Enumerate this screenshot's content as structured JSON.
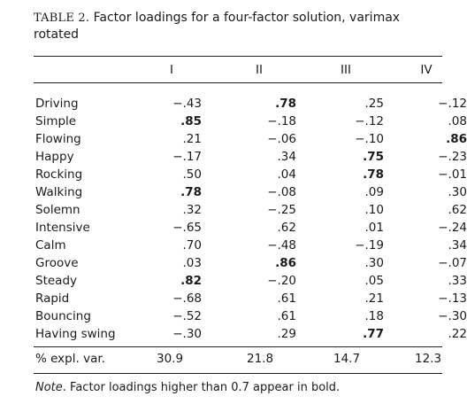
{
  "caption": {
    "label": "TABLE 2.",
    "text": "Factor loadings for a four-factor solution, varimax rotated"
  },
  "columns": [
    "I",
    "II",
    "III",
    "IV"
  ],
  "rows": [
    {
      "label": "Driving",
      "values": [
        "−.43",
        ".78",
        ".25",
        "−.12"
      ],
      "bold": [
        false,
        true,
        false,
        false
      ]
    },
    {
      "label": "Simple",
      "values": [
        ".85",
        "−.18",
        "−.12",
        ".08"
      ],
      "bold": [
        true,
        false,
        false,
        false
      ]
    },
    {
      "label": "Flowing",
      "values": [
        ".21",
        "−.06",
        "−.10",
        ".86"
      ],
      "bold": [
        false,
        false,
        false,
        true
      ]
    },
    {
      "label": "Happy",
      "values": [
        "−.17",
        ".34",
        ".75",
        "−.23"
      ],
      "bold": [
        false,
        false,
        true,
        false
      ]
    },
    {
      "label": "Rocking",
      "values": [
        ".50",
        ".04",
        ".78",
        "−.01"
      ],
      "bold": [
        false,
        false,
        true,
        false
      ]
    },
    {
      "label": "Walking",
      "values": [
        ".78",
        "−.08",
        ".09",
        ".30"
      ],
      "bold": [
        true,
        false,
        false,
        false
      ]
    },
    {
      "label": "Solemn",
      "values": [
        ".32",
        "−.25",
        ".10",
        ".62"
      ],
      "bold": [
        false,
        false,
        false,
        false
      ]
    },
    {
      "label": "Intensive",
      "values": [
        "−.65",
        ".62",
        ".01",
        "−.24"
      ],
      "bold": [
        false,
        false,
        false,
        false
      ]
    },
    {
      "label": "Calm",
      "values": [
        ".70",
        "−.48",
        "−.19",
        ".34"
      ],
      "bold": [
        false,
        false,
        false,
        false
      ]
    },
    {
      "label": "Groove",
      "values": [
        ".03",
        ".86",
        ".30",
        "−.07"
      ],
      "bold": [
        false,
        true,
        false,
        false
      ]
    },
    {
      "label": "Steady",
      "values": [
        ".82",
        "−.20",
        ".05",
        ".33"
      ],
      "bold": [
        true,
        false,
        false,
        false
      ]
    },
    {
      "label": "Rapid",
      "values": [
        "−.68",
        ".61",
        ".21",
        "−.13"
      ],
      "bold": [
        false,
        false,
        false,
        false
      ]
    },
    {
      "label": "Bouncing",
      "values": [
        "−.52",
        ".61",
        ".18",
        "−.30"
      ],
      "bold": [
        false,
        false,
        false,
        false
      ]
    },
    {
      "label": "Having swing",
      "values": [
        "−.30",
        ".29",
        ".77",
        ".22"
      ],
      "bold": [
        false,
        false,
        true,
        false
      ]
    }
  ],
  "explained_variance": {
    "label": "% expl. var.",
    "values": [
      "30.9",
      "21.8",
      "14.7",
      "12.3"
    ]
  },
  "note": {
    "lead": "Note",
    "text": ". Factor loadings higher than 0.7 appear in bold."
  }
}
